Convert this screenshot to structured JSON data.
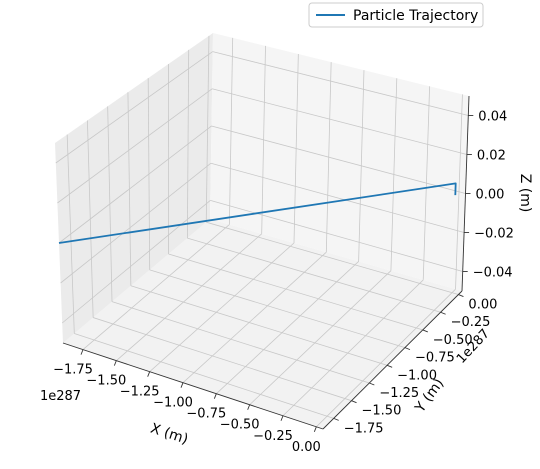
{
  "chart_data": {
    "type": "line",
    "projection": "3d",
    "title": "",
    "xlabel": "X (m)",
    "ylabel": "Y (m)",
    "zlabel": "Z (m)",
    "x_offset_text": "1e287",
    "y_offset_text": "1e287",
    "x_ticks": [
      "−1.75",
      "−1.50",
      "−1.25",
      "−1.00",
      "−0.75",
      "−0.50",
      "−0.25",
      "0.00"
    ],
    "y_ticks": [
      "0.00",
      "−0.25",
      "−0.50",
      "−0.75",
      "−1.00",
      "−1.25",
      "−1.50",
      "−1.75"
    ],
    "z_ticks": [
      "0.04",
      "0.02",
      "0.00",
      "−0.02",
      "−0.04"
    ],
    "xlim": [
      -1.9,
      0.05
    ],
    "ylim": [
      -1.9,
      0.05
    ],
    "zlim": [
      -0.05,
      0.05
    ],
    "grid": true,
    "legend_position": "top-right",
    "series": [
      {
        "name": "Particle Trajectory",
        "color": "#1f77b4",
        "x": [
          0.0,
          0.0,
          0.0,
          -1.9
        ],
        "y": [
          0.0,
          0.0,
          0.0,
          -1.9
        ],
        "z": [
          0.0,
          0.003,
          0.006,
          0.0
        ]
      }
    ]
  }
}
